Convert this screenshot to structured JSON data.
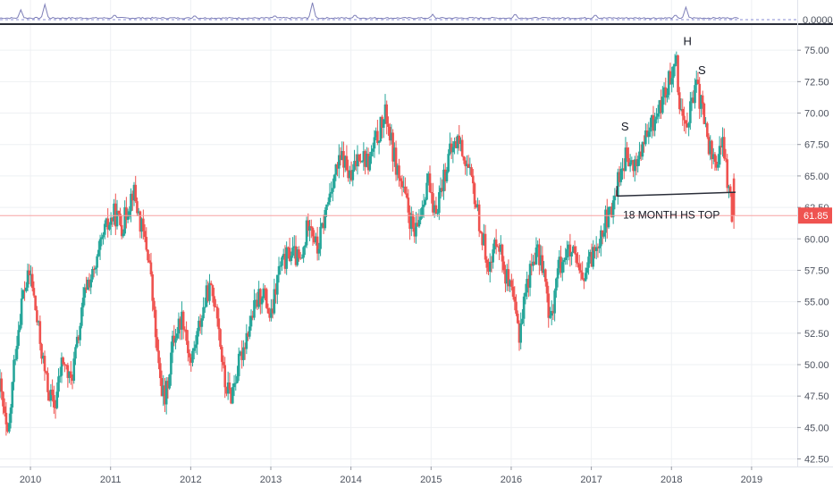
{
  "colors": {
    "up": "#26a69a",
    "down": "#ef5350",
    "grid": "#eef0f3",
    "axis_text": "#4c525e",
    "indicator_line": "#7e7fb8",
    "indicator_zero": "#8a8ed6",
    "price_line": "#f7a3a3",
    "price_badge": "#ef5350",
    "neckline": "#2a2e39",
    "annotation_text": "#131722",
    "pane_separator": "#2a2e39"
  },
  "indicator": {
    "zero_label": "0.0000"
  },
  "chart_data": {
    "type": "candlestick",
    "title": "",
    "xlabel": "",
    "ylabel": "",
    "xlim": [
      2009.62,
      2019.57
    ],
    "ylim": [
      41.9,
      77.0
    ],
    "x_ticks": [
      "2010",
      "2011",
      "2012",
      "2013",
      "2014",
      "2015",
      "2016",
      "2017",
      "2018",
      "2019"
    ],
    "y_ticks": [
      "42.50",
      "45.00",
      "47.50",
      "50.00",
      "52.50",
      "55.00",
      "57.50",
      "60.00",
      "62.50",
      "65.00",
      "67.50",
      "70.00",
      "72.50",
      "75.00"
    ],
    "last_price": "61.85",
    "grid": true,
    "legend": "none",
    "price_path": [
      [
        2009.62,
        48.2
      ],
      [
        2009.72,
        43.8
      ],
      [
        2009.8,
        50.5
      ],
      [
        2009.9,
        55.5
      ],
      [
        2010.0,
        57.3
      ],
      [
        2010.08,
        53.5
      ],
      [
        2010.2,
        48.5
      ],
      [
        2010.3,
        46.5
      ],
      [
        2010.4,
        50.5
      ],
      [
        2010.5,
        48.5
      ],
      [
        2010.58,
        51.5
      ],
      [
        2010.7,
        56.5
      ],
      [
        2010.8,
        57.2
      ],
      [
        2010.92,
        60.5
      ],
      [
        2011.05,
        62.0
      ],
      [
        2011.15,
        61.0
      ],
      [
        2011.28,
        64.0
      ],
      [
        2011.38,
        61.0
      ],
      [
        2011.48,
        58.5
      ],
      [
        2011.6,
        49.5
      ],
      [
        2011.68,
        47.0
      ],
      [
        2011.78,
        52.0
      ],
      [
        2011.9,
        54.0
      ],
      [
        2012.0,
        50.0
      ],
      [
        2012.12,
        53.5
      ],
      [
        2012.22,
        56.0
      ],
      [
        2012.32,
        55.0
      ],
      [
        2012.42,
        48.5
      ],
      [
        2012.5,
        47.5
      ],
      [
        2012.6,
        50.0
      ],
      [
        2012.7,
        52.5
      ],
      [
        2012.8,
        54.5
      ],
      [
        2012.9,
        56.0
      ],
      [
        2013.0,
        53.5
      ],
      [
        2013.1,
        57.5
      ],
      [
        2013.25,
        59.0
      ],
      [
        2013.38,
        58.0
      ],
      [
        2013.48,
        62.0
      ],
      [
        2013.58,
        59.0
      ],
      [
        2013.68,
        62.0
      ],
      [
        2013.78,
        65.0
      ],
      [
        2013.9,
        66.5
      ],
      [
        2014.0,
        64.5
      ],
      [
        2014.1,
        67.0
      ],
      [
        2014.22,
        66.0
      ],
      [
        2014.35,
        68.5
      ],
      [
        2014.44,
        70.0
      ],
      [
        2014.52,
        67.0
      ],
      [
        2014.62,
        64.5
      ],
      [
        2014.72,
        62.0
      ],
      [
        2014.8,
        60.0
      ],
      [
        2014.88,
        62.5
      ],
      [
        2014.96,
        65.0
      ],
      [
        2015.03,
        61.5
      ],
      [
        2015.12,
        64.0
      ],
      [
        2015.22,
        66.5
      ],
      [
        2015.34,
        68.0
      ],
      [
        2015.44,
        66.0
      ],
      [
        2015.54,
        63.5
      ],
      [
        2015.64,
        60.0
      ],
      [
        2015.74,
        57.5
      ],
      [
        2015.82,
        60.5
      ],
      [
        2015.92,
        57.5
      ],
      [
        2016.02,
        55.0
      ],
      [
        2016.1,
        52.5
      ],
      [
        2016.18,
        56.0
      ],
      [
        2016.3,
        59.0
      ],
      [
        2016.4,
        58.0
      ],
      [
        2016.48,
        53.0
      ],
      [
        2016.58,
        57.5
      ],
      [
        2016.68,
        59.0
      ],
      [
        2016.78,
        58.5
      ],
      [
        2016.88,
        56.5
      ],
      [
        2016.98,
        58.0
      ],
      [
        2017.08,
        60.0
      ],
      [
        2017.18,
        61.5
      ],
      [
        2017.26,
        62.0
      ],
      [
        2017.32,
        64.5
      ],
      [
        2017.42,
        66.5
      ],
      [
        2017.52,
        65.5
      ],
      [
        2017.62,
        67.0
      ],
      [
        2017.72,
        68.5
      ],
      [
        2017.82,
        70.0
      ],
      [
        2017.92,
        71.5
      ],
      [
        2017.99,
        73.0
      ],
      [
        2018.05,
        75.0
      ],
      [
        2018.1,
        71.0
      ],
      [
        2018.16,
        69.0
      ],
      [
        2018.24,
        70.5
      ],
      [
        2018.32,
        72.0
      ],
      [
        2018.38,
        70.5
      ],
      [
        2018.46,
        67.5
      ],
      [
        2018.55,
        66.0
      ],
      [
        2018.65,
        67.5
      ],
      [
        2018.7,
        64.5
      ],
      [
        2018.76,
        61.85
      ]
    ],
    "indicator_spikes": [
      [
        2009.88,
        0.55
      ],
      [
        2010.18,
        0.85
      ],
      [
        2011.05,
        0.3
      ],
      [
        2012.05,
        0.25
      ],
      [
        2013.05,
        0.25
      ],
      [
        2013.52,
        0.95
      ],
      [
        2014.05,
        0.3
      ],
      [
        2015.02,
        0.3
      ],
      [
        2016.05,
        0.35
      ],
      [
        2017.05,
        0.3
      ],
      [
        2018.05,
        0.3
      ],
      [
        2018.18,
        0.7
      ]
    ],
    "annotations": [
      {
        "text": "S",
        "x": 2017.42,
        "y": 68.6
      },
      {
        "text": "H",
        "x": 2018.2,
        "y": 75.4
      },
      {
        "text": "S",
        "x": 2018.38,
        "y": 73.1
      },
      {
        "text": "18 MONTH HS TOP",
        "x": 2018.0,
        "y": 61.6
      }
    ],
    "neckline": {
      "x": [
        2017.32,
        2018.8
      ],
      "y": [
        63.4,
        63.7
      ],
      "left_tick_top": 64.2
    }
  }
}
